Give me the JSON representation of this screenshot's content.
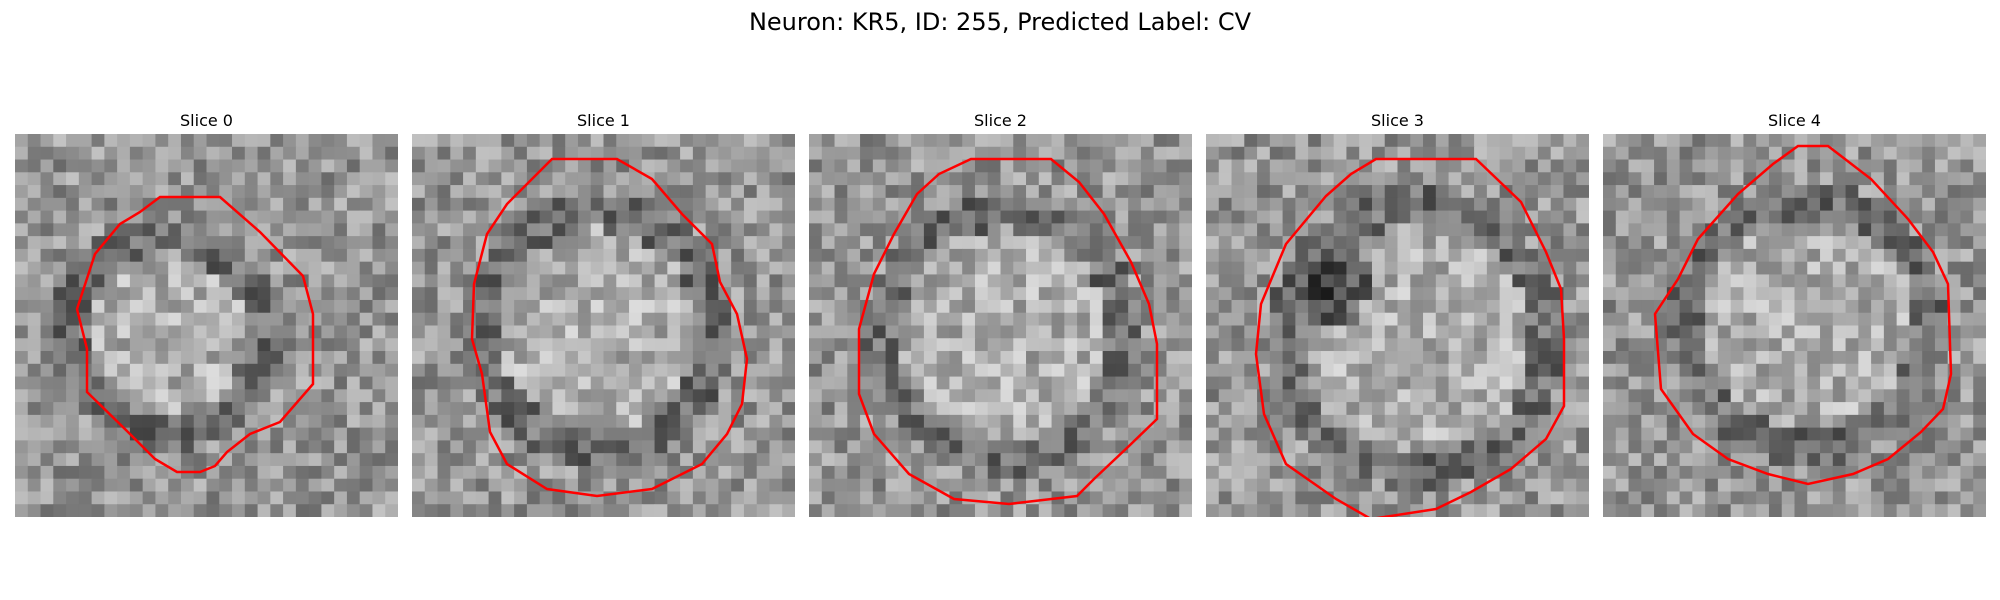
{
  "figure": {
    "title": "Neuron: KR5, ID: 255, Predicted Label: CV",
    "outline_color": "#ff0000"
  },
  "panels": [
    {
      "title": "Slice 0",
      "dark_spot": false
    },
    {
      "title": "Slice 1",
      "dark_spot": false
    },
    {
      "title": "Slice 2",
      "dark_spot": false
    },
    {
      "title": "Slice 3",
      "dark_spot": true
    },
    {
      "title": "Slice 4",
      "dark_spot": false
    }
  ]
}
